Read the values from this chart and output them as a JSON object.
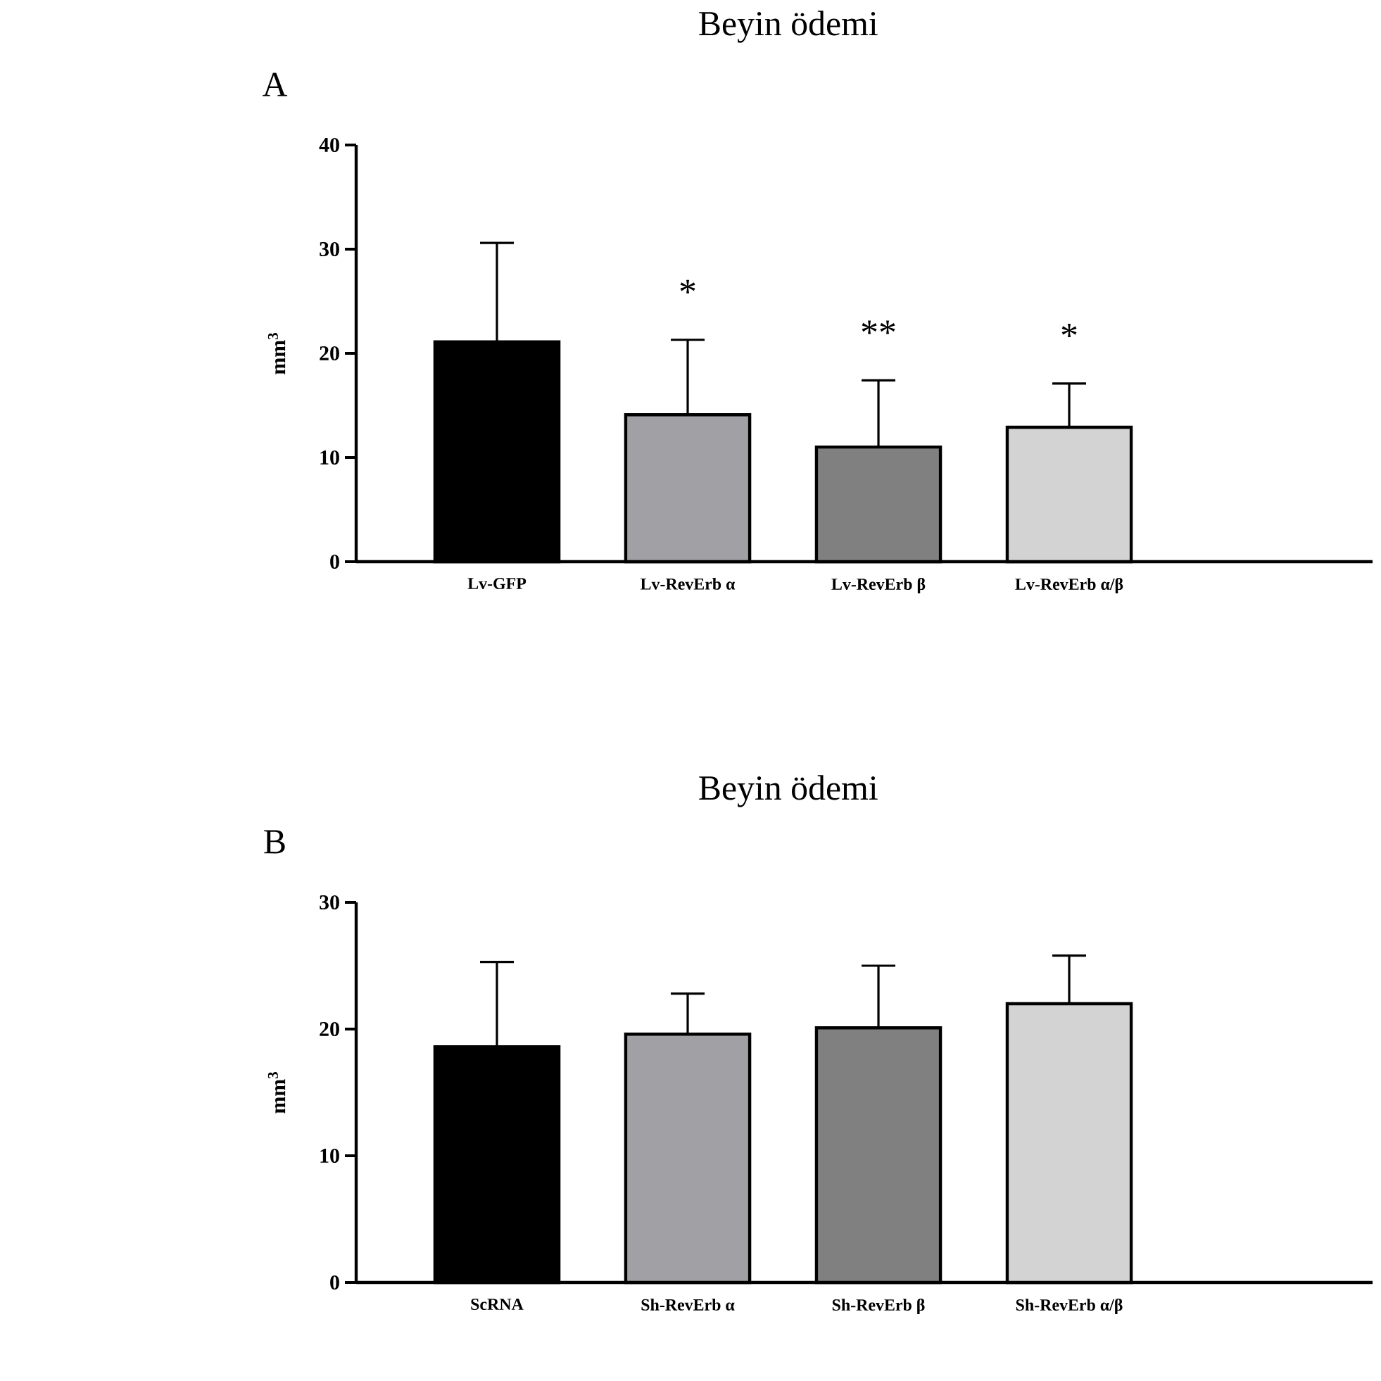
{
  "chart_data": [
    {
      "type": "bar",
      "title": "Beyin ödemi",
      "ylabel": "mm$^{3}$",
      "categories": [
        "Lv-GFP",
        "Lv-RevErb α",
        "Lv-RevErb β",
        "Lv-RevErb α/β"
      ],
      "values": [
        21.1,
        14.1,
        11.0,
        12.9
      ],
      "errors": [
        [
          21.1,
          30.6
        ],
        [
          14.1,
          21.3
        ],
        [
          11.0,
          17.4
        ],
        [
          12.9,
          17.1
        ]
      ],
      "colors": [
        "#000000",
        "#a0a0a5",
        "#808080",
        "#d3d3d3"
      ],
      "ylim": [
        0,
        40
      ],
      "yticks": [
        0,
        10,
        20,
        30,
        40
      ],
      "grid": false,
      "annotations": [
        "A",
        "*",
        "**",
        "*"
      ]
    },
    {
      "type": "bar",
      "title": "Beyin ödemi",
      "ylabel": "mm$^{3}$",
      "categories": [
        "ScRNA",
        "Sh-RevErb α",
        "Sh-RevErb β",
        "Sh-RevErb α/β"
      ],
      "values": [
        18.6,
        19.6,
        20.1,
        22.0
      ],
      "errors": [
        [
          18.6,
          25.3
        ],
        [
          19.6,
          22.8
        ],
        [
          20.1,
          25.0
        ],
        [
          22.0,
          25.8
        ]
      ],
      "colors": [
        "#000000",
        "#a0a0a5",
        "#808080",
        "#d3d3d3"
      ],
      "ylim": [
        0,
        30
      ],
      "yticks": [
        0,
        10,
        20,
        30
      ],
      "grid": false,
      "annotations": [
        "B"
      ]
    }
  ]
}
